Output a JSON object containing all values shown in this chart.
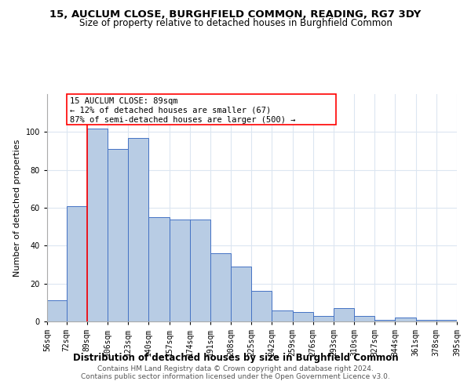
{
  "title": "15, AUCLUM CLOSE, BURGHFIELD COMMON, READING, RG7 3DY",
  "subtitle": "Size of property relative to detached houses in Burghfield Common",
  "xlabel": "Distribution of detached houses by size in Burghfield Common",
  "ylabel": "Number of detached properties",
  "footer_line1": "Contains HM Land Registry data © Crown copyright and database right 2024.",
  "footer_line2": "Contains public sector information licensed under the Open Government Licence v3.0.",
  "annotation_title": "15 AUCLUM CLOSE: 89sqm",
  "annotation_line1": "← 12% of detached houses are smaller (67)",
  "annotation_line2": "87% of semi-detached houses are larger (500) →",
  "property_size": 89,
  "bin_edges": [
    56,
    72,
    89,
    106,
    123,
    140,
    157,
    174,
    191,
    208,
    225,
    242,
    259,
    276,
    293,
    310,
    327,
    344,
    361,
    378,
    395
  ],
  "bar_heights": [
    11,
    61,
    102,
    91,
    97,
    55,
    54,
    54,
    36,
    29,
    16,
    6,
    5,
    3,
    7,
    3,
    1,
    2,
    1,
    1
  ],
  "bar_color": "#b8cce4",
  "bar_edge_color": "#4472c4",
  "highlight_color": "#ff0000",
  "annotation_box_color": "#ffffff",
  "annotation_box_edge": "#ff0000",
  "background_color": "#ffffff",
  "grid_color": "#dce6f1",
  "title_fontsize": 9.5,
  "subtitle_fontsize": 8.5,
  "ylabel_fontsize": 8,
  "xlabel_fontsize": 8.5,
  "tick_fontsize": 7,
  "annotation_fontsize": 7.5,
  "footer_fontsize": 6.5,
  "ylim": [
    0,
    120
  ]
}
